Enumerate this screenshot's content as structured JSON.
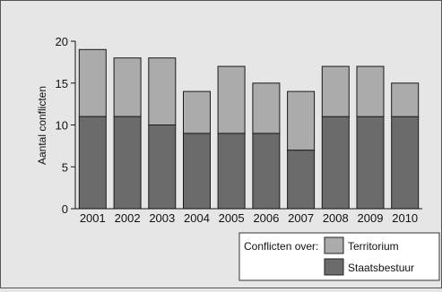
{
  "chart_data": {
    "type": "bar",
    "stacked": true,
    "categories": [
      "2001",
      "2002",
      "2003",
      "2004",
      "2005",
      "2006",
      "2007",
      "2008",
      "2009",
      "2010"
    ],
    "series": [
      {
        "name": "Staatsbestuur",
        "values": [
          11,
          11,
          10,
          9,
          9,
          9,
          7,
          11,
          11,
          11
        ],
        "color": "#6b6b6b"
      },
      {
        "name": "Territorium",
        "values": [
          8,
          7,
          8,
          5,
          8,
          6,
          7,
          6,
          6,
          4
        ],
        "color": "#ababab"
      }
    ],
    "ylabel": "Aantal conflicten",
    "ylim": [
      0,
      20
    ],
    "yticks": [
      0,
      5,
      10,
      15,
      20
    ],
    "grid": false,
    "legend": {
      "placement": "bottom-right",
      "title": "Conflicten over:",
      "entries": [
        "Territorium",
        "Staatsbestuur"
      ]
    }
  }
}
